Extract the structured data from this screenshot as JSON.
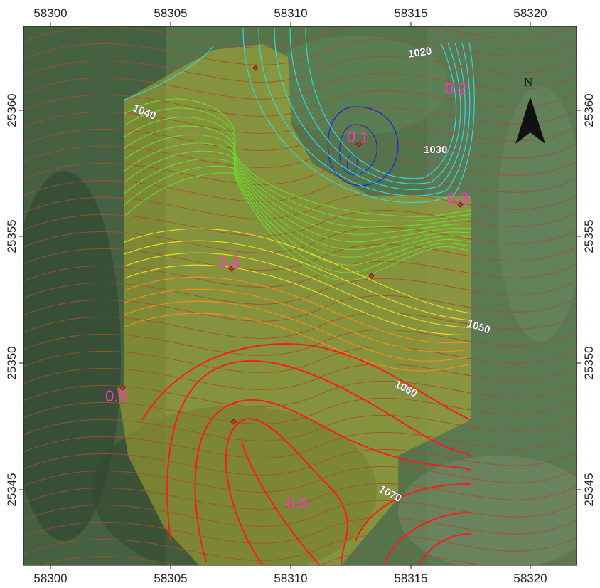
{
  "map": {
    "x_axis": {
      "ticks": [
        "58300",
        "58305",
        "58310",
        "58315",
        "58320"
      ]
    },
    "y_axis": {
      "ticks": [
        "25360",
        "25355",
        "25350",
        "25345"
      ]
    },
    "north_arrow": {
      "label": "N",
      "icon": "north-arrow-icon"
    },
    "contour_labels": [
      "1020",
      "1030",
      "1040",
      "1050",
      "1060",
      "1070"
    ],
    "points": [
      "0.1",
      "0.2",
      "0.3",
      "0.4",
      "0.5",
      "0.6"
    ],
    "colors": {
      "basemap": "#4c6a45",
      "overlay": "#b8b12e",
      "contour_brown": "#a0522d",
      "contour_blue": "#1a2fd0",
      "contour_cyan": "#30d8e0",
      "contour_green": "#66e02a",
      "contour_yellow": "#f2e21a",
      "contour_orange": "#ff8c1a",
      "contour_red": "#ff1a1a",
      "point_label": "#ff33cc"
    }
  }
}
